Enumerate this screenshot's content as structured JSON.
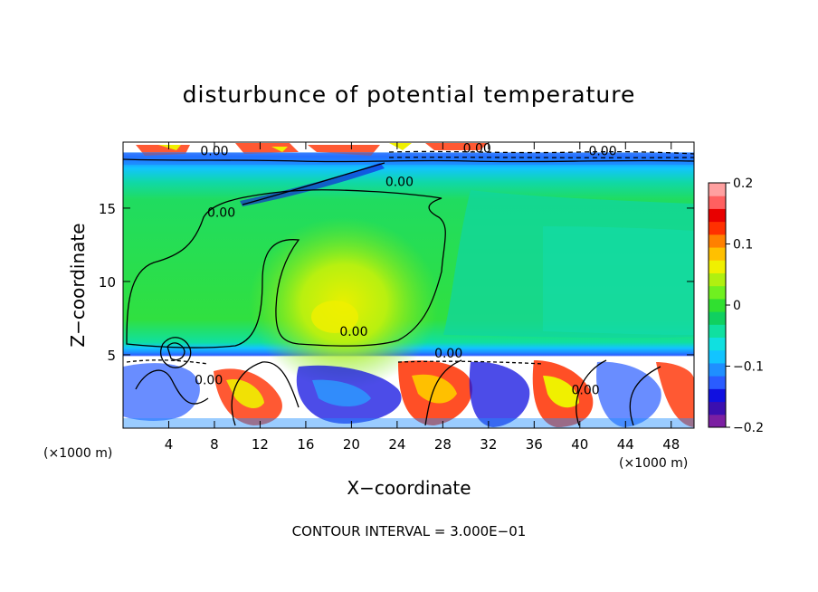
{
  "chart_data": {
    "type": "heatmap",
    "title": "disturbunce of potential temperature",
    "xlabel": "X−coordinate",
    "ylabel": "Z−coordinate",
    "x_unit": "(×1000 m)",
    "y_unit": "(×1000 m)",
    "footer": "CONTOUR INTERVAL = 3.000E−01",
    "xlim": [
      0,
      50
    ],
    "ylim": [
      0,
      19.5
    ],
    "x_ticks": [
      4,
      8,
      12,
      16,
      20,
      24,
      28,
      32,
      36,
      40,
      44,
      48
    ],
    "x_tick_labels": [
      "4",
      "8",
      "12",
      "16",
      "20",
      "24",
      "28",
      "32",
      "36",
      "40",
      "44",
      "48"
    ],
    "y_ticks": [
      5,
      10,
      15
    ],
    "y_tick_labels": [
      "5",
      "10",
      "15"
    ],
    "colorbar": {
      "range": [
        -0.2,
        0.2
      ],
      "tick_values": [
        0.2,
        0.1,
        0,
        -0.1,
        -0.2
      ],
      "tick_labels": [
        "0.2",
        "0.1",
        "0",
        "−0.1",
        "−0.2"
      ],
      "colors": [
        "#7b1fa2",
        "#3b0fb0",
        "#1010e0",
        "#2a5cff",
        "#1f8fff",
        "#12c4ff",
        "#10e0e0",
        "#10e0a0",
        "#10d060",
        "#30e030",
        "#70f020",
        "#b0f010",
        "#f0f000",
        "#ffc000",
        "#ff8000",
        "#ff3000",
        "#e80000",
        "#ff6060",
        "#ffa0a0"
      ]
    },
    "contour_labels": [
      {
        "text": "0.00",
        "x": 20.2,
        "y": 6.3
      },
      {
        "text": "0.00",
        "x": 24.2,
        "y": 16.5
      },
      {
        "text": "0.00",
        "x": 8.6,
        "y": 14.4
      },
      {
        "text": "0.00",
        "x": 28.5,
        "y": 4.8
      },
      {
        "text": "0.00",
        "x": 8.0,
        "y": 18.6
      },
      {
        "text": "0.00",
        "x": 31.0,
        "y": 18.8
      },
      {
        "text": "0.00",
        "x": 42.0,
        "y": 18.6
      },
      {
        "text": "0.00",
        "x": 40.5,
        "y": 2.3
      },
      {
        "text": "0.00",
        "x": 7.5,
        "y": 3.0
      }
    ]
  }
}
